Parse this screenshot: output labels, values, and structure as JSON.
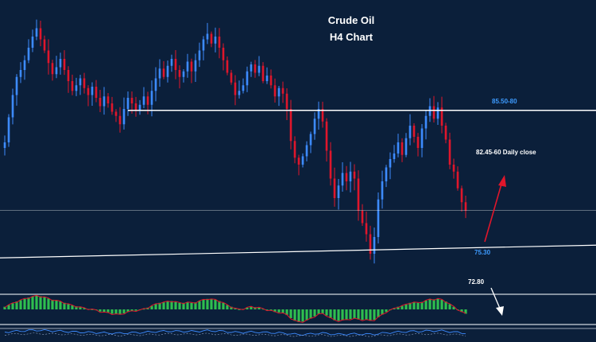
{
  "chart_data": {
    "type": "candlestick",
    "title": "Crude Oil",
    "subtitle": "H4 Chart",
    "colors": {
      "background": "#0b1f3a",
      "bull": "#3d8bff",
      "bear": "#e0162b",
      "hist_up": "#2fbf4f",
      "hist_line": "#e0162b",
      "level_line": "#ffffff",
      "arrow_up": "#e0162b",
      "arrow_down": "#ffffff",
      "osc_line": "#3d8bff"
    },
    "annotations": {
      "target_upper": "85.50-80",
      "resistance": "82.45-60 Daily close",
      "current": "75.30",
      "support": "72.80"
    },
    "price_range": [
      71,
      89
    ],
    "levels": [
      {
        "name": "resistance",
        "price": 82.5
      },
      {
        "name": "current",
        "price": 75.3
      }
    ],
    "trendline": {
      "from_index": 0,
      "from_price": 71.9,
      "to_index": 130,
      "to_price": 72.7
    },
    "close_series": [
      80.2,
      82.0,
      83.6,
      84.9,
      85.4,
      86.1,
      87.0,
      87.8,
      88.4,
      87.6,
      86.8,
      85.9,
      85.1,
      85.6,
      86.2,
      85.4,
      84.6,
      83.9,
      84.3,
      84.8,
      84.1,
      83.6,
      84.2,
      83.4,
      82.8,
      83.5,
      83.0,
      82.4,
      82.1,
      81.5,
      82.6,
      83.4,
      83.0,
      82.5,
      82.9,
      83.5,
      82.9,
      83.9,
      84.8,
      85.5,
      84.9,
      85.7,
      86.2,
      85.4,
      84.9,
      85.3,
      86.0,
      85.3,
      86.1,
      86.8,
      87.6,
      88.0,
      87.3,
      87.8,
      87.0,
      86.1,
      85.2,
      84.5,
      83.6,
      83.9,
      84.3,
      85.3,
      85.8,
      85.2,
      85.7,
      84.6,
      85.0,
      84.3,
      83.5,
      84.1,
      83.7,
      82.6,
      80.3,
      79.1,
      78.6,
      79.2,
      80.0,
      80.8,
      81.9,
      82.6,
      81.7,
      79.6,
      77.6,
      76.2,
      77.1,
      78.0,
      77.4,
      78.1,
      77.6,
      75.3,
      74.4,
      73.6,
      72.2,
      73.4,
      76.1,
      77.4,
      78.4,
      79.0,
      79.4,
      80.2,
      79.3,
      80.5,
      81.4,
      80.6,
      79.8,
      81.2,
      82.1,
      82.8,
      81.9,
      82.7,
      81.4,
      80.4,
      78.6,
      78.1,
      76.9,
      75.9,
      75.3
    ],
    "macd_histogram_series": [
      0.6,
      1.0,
      1.4,
      1.8,
      2.1,
      2.4,
      2.7,
      2.9,
      3.1,
      3.0,
      2.8,
      2.5,
      2.2,
      2.0,
      1.8,
      1.5,
      1.2,
      0.9,
      0.7,
      0.5,
      0.3,
      0.1,
      0.0,
      -0.2,
      -0.5,
      -0.7,
      -0.8,
      -1.0,
      -1.1,
      -1.2,
      -0.9,
      -0.6,
      -0.4,
      -0.3,
      -0.2,
      0.1,
      0.4,
      0.8,
      1.2,
      1.5,
      1.6,
      1.8,
      1.9,
      1.7,
      1.5,
      1.5,
      1.6,
      1.5,
      1.6,
      1.9,
      2.2,
      2.4,
      2.3,
      2.2,
      1.9,
      1.5,
      1.0,
      0.6,
      0.2,
      0.0,
      0.1,
      0.4,
      0.6,
      0.5,
      0.4,
      0.1,
      -0.1,
      -0.3,
      -0.6,
      -0.7,
      -0.9,
      -1.3,
      -2.0,
      -2.6,
      -2.9,
      -2.8,
      -2.5,
      -2.1,
      -1.6,
      -1.1,
      -1.0,
      -1.4,
      -2.0,
      -2.5,
      -2.6,
      -2.5,
      -2.4,
      -2.2,
      -2.1,
      -2.3,
      -2.4,
      -2.4,
      -2.6,
      -2.4,
      -1.8,
      -1.2,
      -0.6,
      -0.2,
      0.2,
      0.6,
      0.8,
      1.1,
      1.5,
      1.6,
      1.5,
      1.7,
      2.0,
      2.3,
      2.3,
      2.4,
      2.2,
      1.8,
      1.2,
      0.6,
      0.0,
      -0.6,
      -1.0
    ]
  }
}
